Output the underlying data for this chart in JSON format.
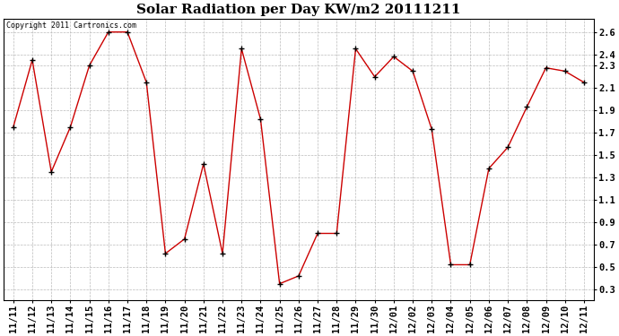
{
  "title": "Solar Radiation per Day KW/m2 20111211",
  "copyright_text": "Copyright 2011 Cartronics.com",
  "labels": [
    "11/11",
    "11/12",
    "11/13",
    "11/14",
    "11/15",
    "11/16",
    "11/17",
    "11/18",
    "11/19",
    "11/20",
    "11/21",
    "11/22",
    "11/23",
    "11/24",
    "11/25",
    "11/26",
    "11/27",
    "11/28",
    "11/29",
    "11/30",
    "12/01",
    "12/02",
    "12/03",
    "12/04",
    "12/05",
    "12/06",
    "12/07",
    "12/08",
    "12/09",
    "12/10",
    "12/11"
  ],
  "values": [
    1.75,
    2.35,
    1.35,
    1.75,
    2.3,
    2.6,
    2.6,
    2.15,
    0.62,
    0.75,
    1.42,
    0.62,
    2.45,
    1.82,
    0.35,
    0.42,
    0.8,
    0.8,
    2.45,
    2.2,
    2.38,
    2.25,
    1.73,
    0.52,
    0.52,
    1.38,
    1.57,
    1.93,
    2.28,
    2.25,
    2.15
  ],
  "line_color": "#cc0000",
  "marker": "+",
  "ylim": [
    0.2,
    2.72
  ],
  "yticks": [
    0.3,
    0.5,
    0.7,
    0.9,
    1.1,
    1.3,
    1.5,
    1.7,
    1.9,
    2.1,
    2.3,
    2.4,
    2.6
  ],
  "background_color": "#ffffff",
  "grid_color": "#bbbbbb",
  "title_fontsize": 11,
  "tick_fontsize": 7.5
}
